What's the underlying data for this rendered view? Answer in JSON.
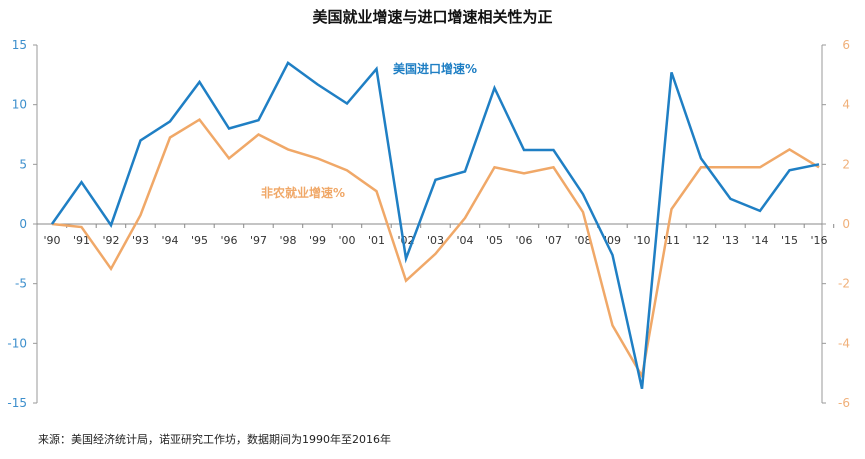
{
  "chart_data": {
    "type": "line",
    "title": "美国就业增速与进口增速相关性为正",
    "source": "来源：美国经济统计局，诺亚研究工作坊，数据期间为1990年至2016年",
    "categories": [
      "'90",
      "'91",
      "'92",
      "'93",
      "'94",
      "'95",
      "'96",
      "'97",
      "'98",
      "'99",
      "'00",
      "'01",
      "'02",
      "'03",
      "'04",
      "'05",
      "'06",
      "'07",
      "'08",
      "'09",
      "'10",
      "'11",
      "'12",
      "'13",
      "'14",
      "'15",
      "'16"
    ],
    "y_left": {
      "ylim": [
        -15,
        15
      ],
      "ticks": [
        -15,
        -10,
        -5,
        0,
        5,
        10,
        15
      ],
      "color": "#3d8fcc"
    },
    "y_right": {
      "ylim": [
        -6,
        6
      ],
      "ticks": [
        -6,
        -4,
        -2,
        0,
        2,
        4,
        6
      ],
      "color": "#f0b07a"
    },
    "grid": false,
    "series": [
      {
        "name": "美国进口增速%",
        "axis": "left",
        "color": "#1f7fc4",
        "values": [
          0,
          3.5,
          -0.1,
          7.0,
          8.6,
          11.9,
          8.0,
          8.7,
          13.5,
          11.7,
          10.1,
          13.0,
          -2.9,
          3.7,
          4.4,
          11.4,
          6.2,
          6.2,
          2.5,
          -2.6,
          -13.8,
          12.7,
          5.5,
          2.1,
          1.1,
          4.5,
          5.0
        ]
      },
      {
        "name": "非农就业增速%",
        "axis": "right",
        "color": "#f0a868",
        "values": [
          0,
          -0.1,
          -1.5,
          0.3,
          2.9,
          3.5,
          2.2,
          3.0,
          2.5,
          2.2,
          1.8,
          1.1,
          -1.9,
          -1.0,
          0.2,
          1.9,
          1.7,
          1.9,
          0.4,
          -3.4,
          -5.1,
          0.5,
          1.9,
          1.9,
          1.9,
          2.5,
          1.9
        ]
      }
    ]
  }
}
